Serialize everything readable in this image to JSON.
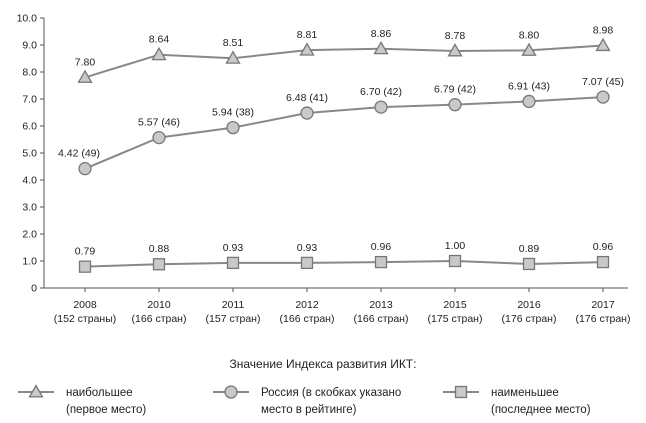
{
  "chart_data": {
    "type": "line",
    "categories": [
      "2008",
      "2010",
      "2011",
      "2012",
      "2013",
      "2015",
      "2016",
      "2017"
    ],
    "category_sublabels": [
      "(152 страны)",
      "(166 стран)",
      "(157 стран)",
      "(166 стран)",
      "(166 стран)",
      "(175 стран)",
      "(176 стран)",
      "(176 стран)"
    ],
    "ylim": [
      0,
      10
    ],
    "yticks": [
      "0",
      "1.0",
      "2.0",
      "3.0",
      "4.0",
      "5.0",
      "6.0",
      "7.0",
      "8.0",
      "9.0",
      "10.0"
    ],
    "grid": false,
    "series": [
      {
        "name": "наибольшее (первое место)",
        "marker": "triangle",
        "values": [
          7.8,
          8.64,
          8.51,
          8.81,
          8.86,
          8.78,
          8.8,
          8.98
        ],
        "labels": [
          "7.80",
          "8.64",
          "8.51",
          "8.81",
          "8.86",
          "8.78",
          "8.80",
          "8.98"
        ]
      },
      {
        "name": "Россия (в скобках указано место в рейтинге)",
        "marker": "circle",
        "values": [
          4.42,
          5.57,
          5.94,
          6.48,
          6.7,
          6.79,
          6.91,
          7.07
        ],
        "labels": [
          "4.42 (49)",
          "5.57 (46)",
          "5.94 (38)",
          "6.48 (41)",
          "6.70 (42)",
          "6.79 (42)",
          "6.91 (43)",
          "7.07 (45)"
        ]
      },
      {
        "name": "наименьшее (последнее место)",
        "marker": "square",
        "values": [
          0.79,
          0.88,
          0.93,
          0.93,
          0.96,
          1.0,
          0.89,
          0.96
        ],
        "labels": [
          "0.79",
          "0.88",
          "0.93",
          "0.93",
          "0.96",
          "1.00",
          "0.89",
          "0.96"
        ]
      }
    ],
    "legend_title": "Значение Индекса развития ИКТ:",
    "legend": [
      {
        "marker": "triangle",
        "lines": [
          "наибольшее",
          "(первое место)"
        ]
      },
      {
        "marker": "circle",
        "lines": [
          "Россия (в скобках указано",
          "место в рейтинге)"
        ]
      },
      {
        "marker": "square",
        "lines": [
          "наименьшее",
          "(последнее место)"
        ]
      }
    ],
    "legend_position": "bottom",
    "colors": {
      "line": "#888888",
      "fill": "#c9c9c9",
      "stroke": "#777777",
      "axis": "#555555"
    }
  }
}
